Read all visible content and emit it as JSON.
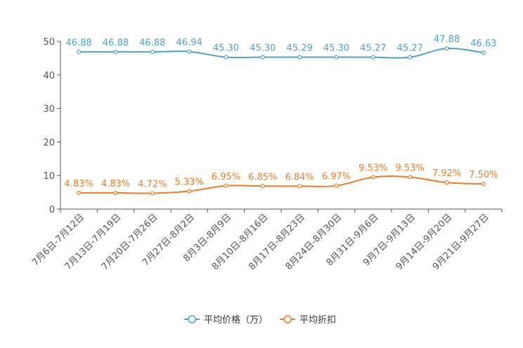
{
  "chart_data": {
    "type": "line",
    "title": "",
    "xlabel": "",
    "ylabel": "",
    "ylim": [
      0,
      50
    ],
    "yticks": [
      "0",
      "10",
      "20",
      "30",
      "40",
      "50"
    ],
    "grid": false,
    "legend_position": "bottom-center",
    "categories": [
      "7月6日-7月12日",
      "7月13日-7月19日",
      "7月20日-7月26日",
      "7月27日-8月2日",
      "8月3日-8月9日",
      "8月10日-8月16日",
      "8月17日-8月23日",
      "8月24日-8月30日",
      "8月31日-9月6日",
      "9月7日-9月13日",
      "9月14日-9月20日",
      "9月21日-9月27日"
    ],
    "series": [
      {
        "name": "平均价格（万）",
        "color": "#4aa3cf",
        "values": [
          46.88,
          46.88,
          46.88,
          46.94,
          45.3,
          45.3,
          45.29,
          45.3,
          45.27,
          45.27,
          47.88,
          46.63
        ],
        "labels": [
          "46.88",
          "46.88",
          "46.88",
          "46.94",
          "45.30",
          "45.30",
          "45.29",
          "45.30",
          "45.27",
          "45.27",
          "47.88",
          "46.63"
        ]
      },
      {
        "name": "平均折扣",
        "color": "#f07a22",
        "values": [
          4.83,
          4.83,
          4.72,
          5.33,
          6.95,
          6.85,
          6.84,
          6.97,
          9.53,
          9.53,
          7.92,
          7.5
        ],
        "labels": [
          "4.83%",
          "4.83%",
          "4.72%",
          "5.33%",
          "6.95%",
          "6.85%",
          "6.84%",
          "6.97%",
          "9.53%",
          "9.53%",
          "7.92%",
          "7.50%"
        ]
      }
    ]
  }
}
